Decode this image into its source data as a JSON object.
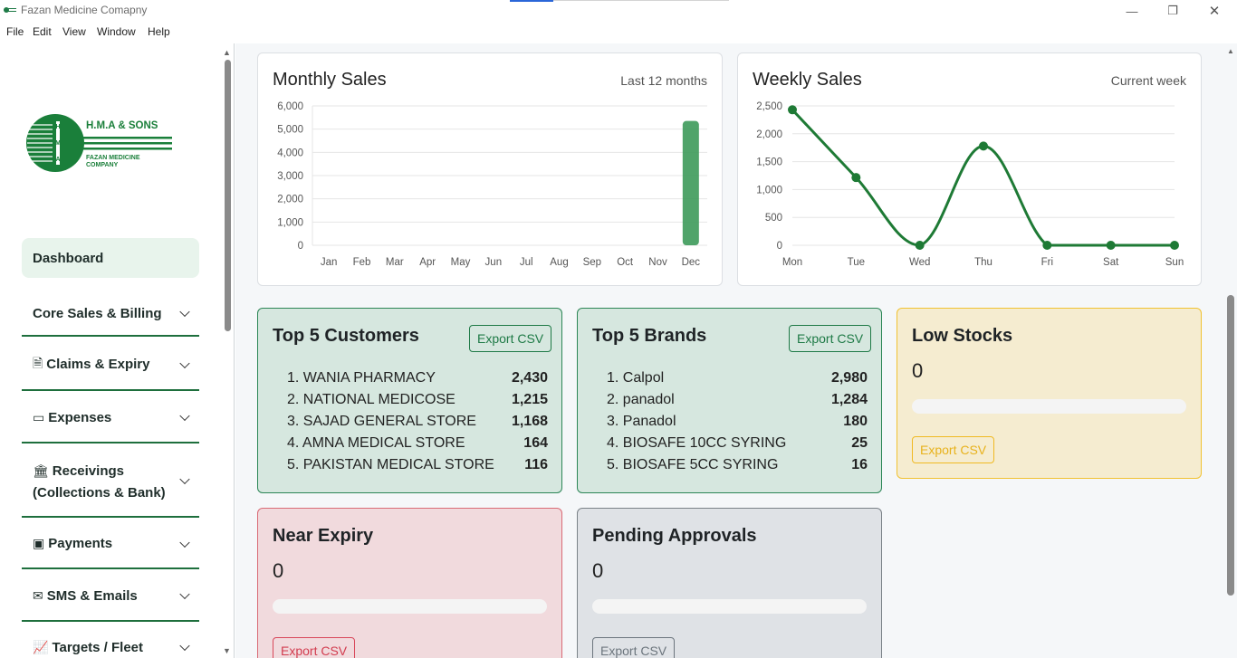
{
  "window": {
    "title": "Fazan Medicine Comapny",
    "controls": [
      "—",
      "❐",
      "✕"
    ]
  },
  "menu": [
    "File",
    "Edit",
    "View",
    "Window",
    "Help"
  ],
  "logo": {
    "company": "H.M.A & SONS",
    "subtitle_1": "FAZAN MEDICINE",
    "subtitle_2": "COMPANY",
    "letters": [
      "H",
      "M",
      "A"
    ]
  },
  "sidebar": {
    "dashboard": "Dashboard",
    "items": [
      {
        "label": "Core Sales & Billing",
        "icon": ""
      },
      {
        "label": "Claims & Expiry",
        "icon": "document-icon"
      },
      {
        "label": "Expenses",
        "icon": "wallet-icon"
      },
      {
        "label": "Receivings",
        "label2": "(Collections & Bank)",
        "icon": "bank-icon"
      },
      {
        "label": "Payments",
        "icon": "cash-icon"
      },
      {
        "label": "SMS & Emails",
        "icon": "envelope-icon"
      },
      {
        "label": "Targets / Fleet",
        "icon": "graph-icon"
      }
    ]
  },
  "monthly": {
    "title": "Monthly Sales",
    "subtitle": "Last 12 months"
  },
  "weekly": {
    "title": "Weekly Sales",
    "subtitle": "Current week"
  },
  "chart_data": [
    {
      "type": "bar",
      "title": "Monthly Sales",
      "categories": [
        "Jan",
        "Feb",
        "Mar",
        "Apr",
        "May",
        "Jun",
        "Jul",
        "Aug",
        "Sep",
        "Oct",
        "Nov",
        "Dec"
      ],
      "values": [
        0,
        0,
        0,
        0,
        0,
        0,
        0,
        0,
        0,
        0,
        0,
        5350
      ],
      "ylim": [
        0,
        6000
      ],
      "yticks": [
        "0",
        "1,000",
        "2,000",
        "3,000",
        "4,000",
        "5,000",
        "6,000"
      ],
      "color": "#3d9a5a",
      "grid": true
    },
    {
      "type": "line",
      "title": "Weekly Sales",
      "categories": [
        "Mon",
        "Tue",
        "Wed",
        "Thu",
        "Fri",
        "Sat",
        "Sun"
      ],
      "values": [
        2430,
        1215,
        0,
        1780,
        0,
        0,
        0
      ],
      "ylim": [
        0,
        2500
      ],
      "yticks": [
        "0",
        "500",
        "1,000",
        "1,500",
        "2,000",
        "2,500"
      ],
      "color": "#1e7a35",
      "grid": true
    }
  ],
  "customers": {
    "title": "Top 5 Customers",
    "export": "Export CSV",
    "rows": [
      {
        "name": "1. WANIA PHARMACY",
        "value": "2,430"
      },
      {
        "name": "2. NATIONAL MEDICOSE",
        "value": "1,215"
      },
      {
        "name": "3. SAJAD GENERAL STORE",
        "value": "1,168"
      },
      {
        "name": "4. AMNA MEDICAL STORE",
        "value": "164"
      },
      {
        "name": "5. PAKISTAN MEDICAL STORE",
        "value": "116"
      }
    ]
  },
  "brands": {
    "title": "Top 5 Brands",
    "export": "Export CSV",
    "rows": [
      {
        "name": "1. Calpol",
        "value": "2,980"
      },
      {
        "name": "2. panadol",
        "value": "1,284"
      },
      {
        "name": "3. Panadol",
        "value": "180"
      },
      {
        "name": "4. BIOSAFE 10CC SYRING",
        "value": "25"
      },
      {
        "name": "5. BIOSAFE 5CC SYRING",
        "value": "16"
      }
    ]
  },
  "low_stocks": {
    "title": "Low Stocks",
    "count": "0",
    "export": "Export CSV",
    "progress": 0
  },
  "near_expiry": {
    "title": "Near Expiry",
    "count": "0",
    "export": "Export CSV",
    "progress": 0
  },
  "pending": {
    "title": "Pending Approvals",
    "count": "0",
    "export": "Export CSV",
    "progress": 0
  },
  "colors": {
    "brand_green": "#1e7a46",
    "success_bg": "#d6e7df",
    "warning_bg": "#f5ecd0",
    "danger_bg": "#f1dadd",
    "secondary_bg": "#dfe2e6"
  }
}
